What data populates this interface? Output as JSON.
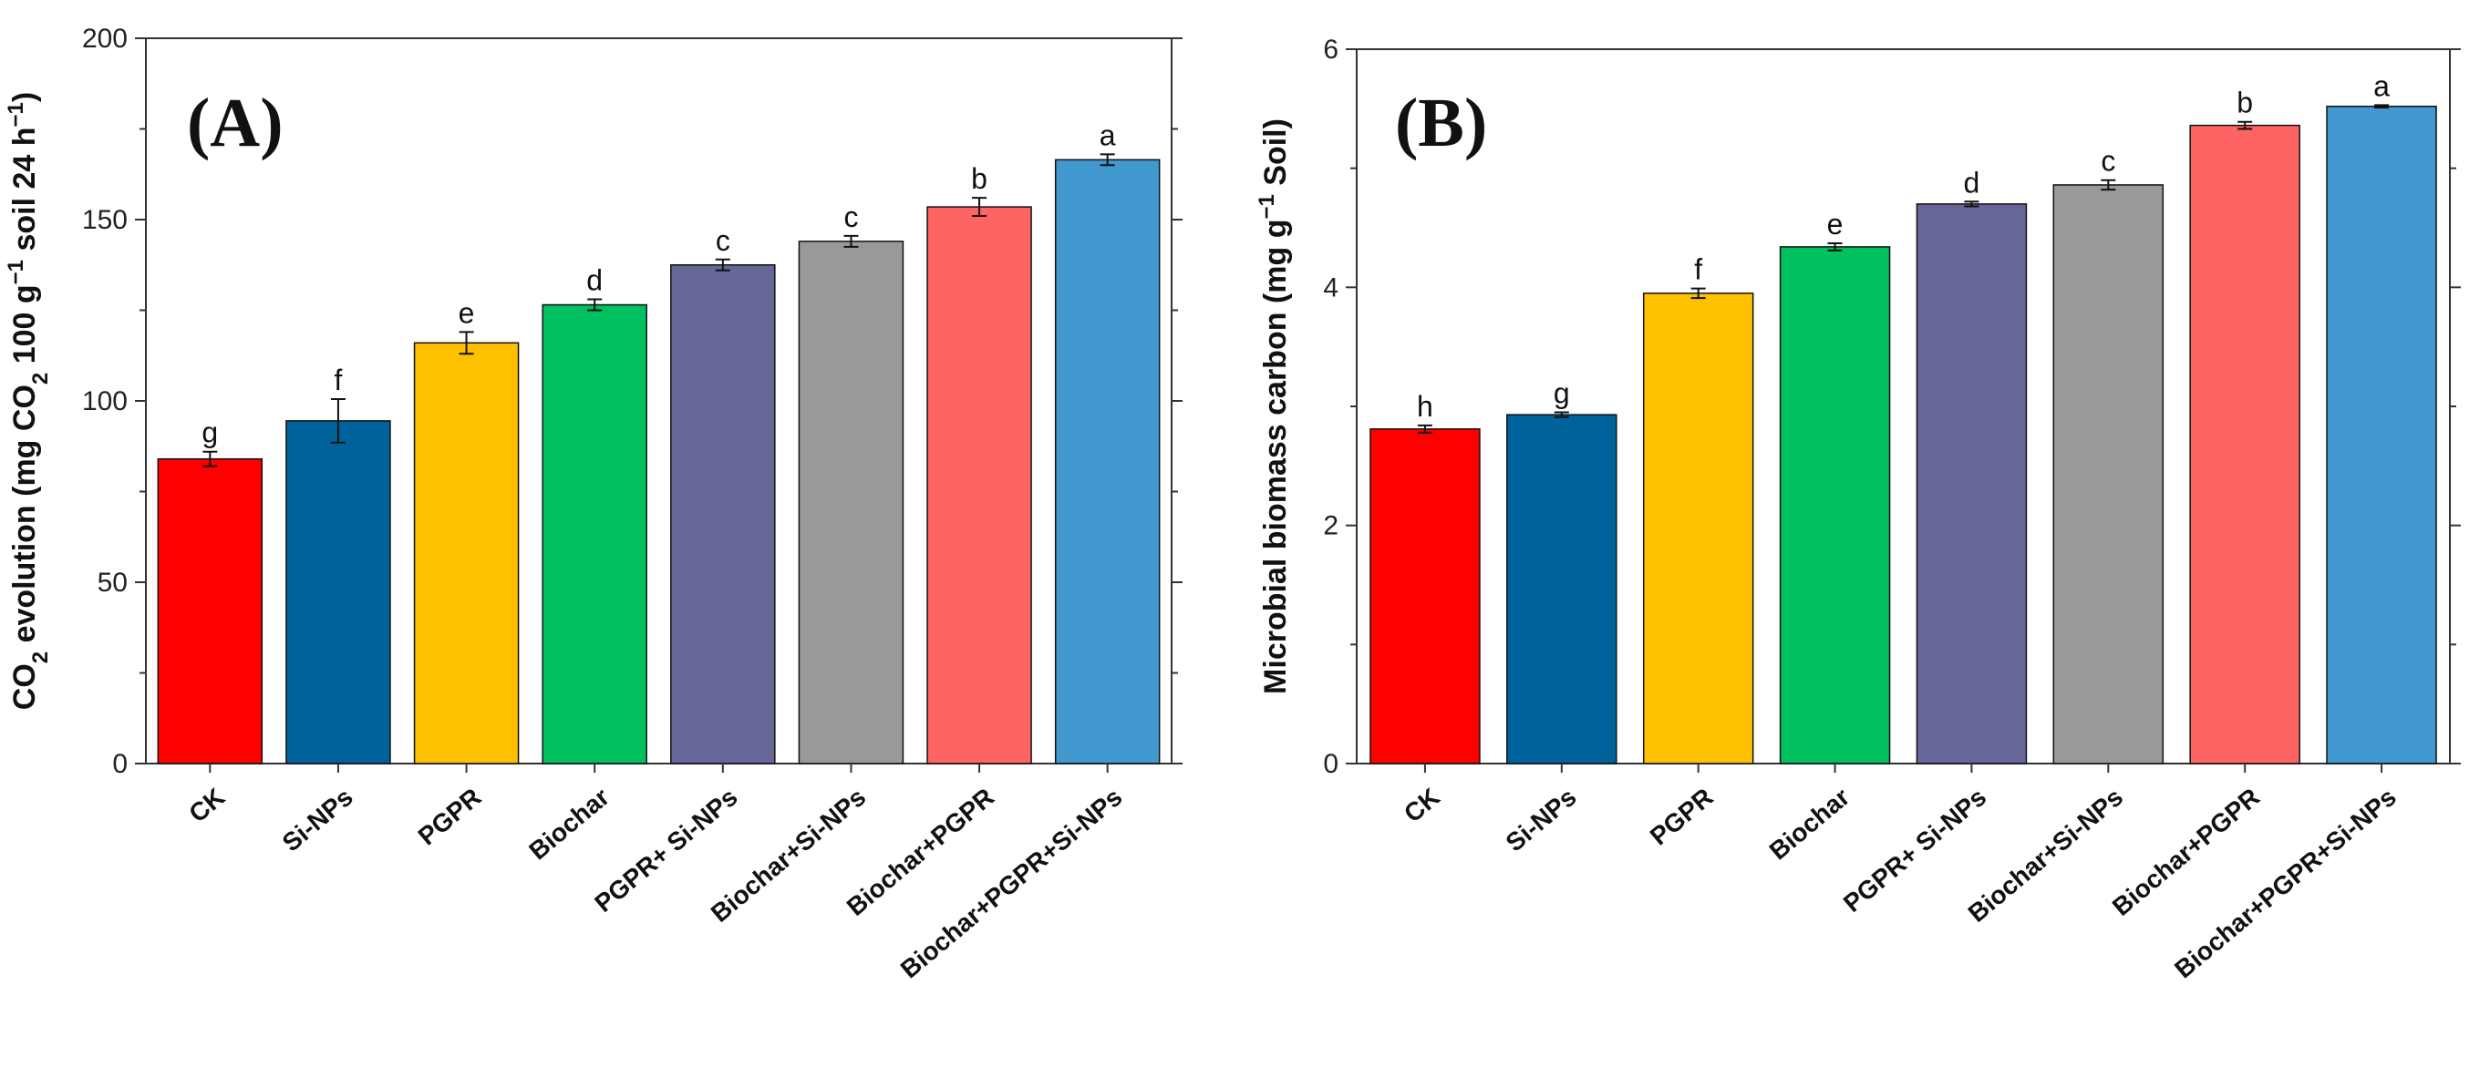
{
  "chart_data": [
    {
      "type": "bar",
      "panel_label": "(A)",
      "categories": [
        "CK",
        "Si-NPs",
        "PGPR",
        "Biochar",
        "PGPR+ Si-NPs",
        "Biochar+Si-NPs",
        "Biochar+PGPR",
        "Biochar+PGPR+Si-NPs"
      ],
      "values": [
        84,
        94.5,
        116,
        126.5,
        137.5,
        144,
        153.5,
        166.5
      ],
      "errors": [
        2.0,
        6.0,
        3.0,
        1.5,
        1.5,
        1.5,
        2.5,
        1.5
      ],
      "significance": [
        "g",
        "f",
        "e",
        "d",
        "c",
        "c",
        "b",
        "a"
      ],
      "colors": [
        "#ff0000",
        "#00629b",
        "#ffc000",
        "#00c060",
        "#666699",
        "#999999",
        "#ff6464",
        "#4098cf"
      ],
      "ylabel": {
        "prefix": "CO",
        "prefix_sub": "2",
        "text": " evolution (mg CO",
        "text_sub": "2",
        "text2": " 100 g",
        "text_sup": "−1",
        "text3": "  soil 24 h",
        "text_sup2": "−1",
        "text4": ")"
      },
      "ylim": [
        0,
        200
      ],
      "yticks": [
        "0",
        "50",
        "100",
        "150",
        "200"
      ],
      "ytick_values": [
        0,
        50,
        100,
        150,
        200
      ]
    },
    {
      "type": "bar",
      "panel_label": "(B)",
      "categories": [
        "CK",
        "Si-NPs",
        "PGPR",
        "Biochar",
        "PGPR+ Si-NPs",
        "Biochar+Si-NPs",
        "Biochar+PGPR",
        "Biochar+PGPR+Si-NPs"
      ],
      "values": [
        2.81,
        2.93,
        3.95,
        4.34,
        4.7,
        4.86,
        5.36,
        5.52
      ],
      "errors": [
        0.03,
        0.02,
        0.04,
        0.03,
        0.02,
        0.04,
        0.03,
        0.01
      ],
      "significance": [
        "h",
        "g",
        "f",
        "e",
        "d",
        "c",
        "b",
        "a"
      ],
      "colors": [
        "#ff0000",
        "#00629b",
        "#ffc000",
        "#00c060",
        "#666699",
        "#999999",
        "#ff6464",
        "#4098cf"
      ],
      "ylabel": {
        "text": "Microbial biomass carbon (mg g",
        "text_sup": "−1",
        "text2": " Soil)"
      },
      "ylim": [
        0,
        6
      ],
      "yticks": [
        "0",
        "2",
        "4",
        "6"
      ],
      "ytick_values": [
        0,
        2,
        4,
        6
      ]
    }
  ]
}
